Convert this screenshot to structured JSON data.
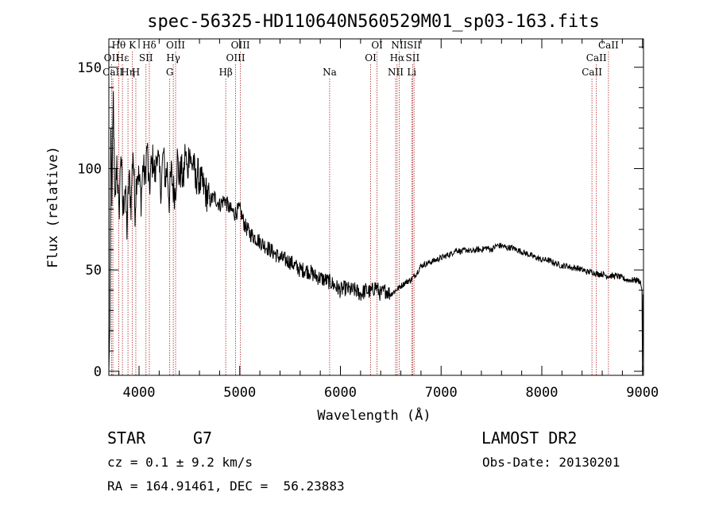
{
  "chart_data": {
    "type": "line",
    "title": "spec-56325-HD110640N560529M01_sp03-163.fits",
    "xlabel": "Wavelength (Å)",
    "ylabel": "Flux (relative)",
    "xlim": [
      3700,
      9010
    ],
    "ylim": [
      -2,
      164
    ],
    "xticks": [
      4000,
      5000,
      6000,
      7000,
      8000,
      9000
    ],
    "yticks": [
      0,
      50,
      100,
      150
    ],
    "grid": false,
    "line_color": "#000000",
    "marker_color": "#aa2222",
    "series": [
      {
        "x": [
          3700,
          3710,
          3720,
          3730,
          3745,
          3760,
          3780,
          3800,
          3820,
          3840,
          3860,
          3880,
          3900,
          3920,
          3940,
          3960,
          3980,
          4000,
          4020,
          4040,
          4060,
          4080,
          4100,
          4120,
          4140,
          4160,
          4180,
          4200,
          4220,
          4240,
          4260,
          4280,
          4300,
          4320,
          4340,
          4360,
          4380,
          4400,
          4420,
          4440,
          4460,
          4480,
          4500,
          4520,
          4540,
          4560,
          4580,
          4600,
          4650,
          4700,
          4750,
          4800,
          4850,
          4900,
          4950,
          5000,
          5050,
          5100,
          5150,
          5200,
          5250,
          5300,
          5350,
          5400,
          5450,
          5500,
          5550,
          5600,
          5650,
          5700,
          5750,
          5800,
          5850,
          5900,
          5950,
          6000,
          6050,
          6100,
          6150,
          6200,
          6250,
          6300,
          6350,
          6400,
          6450,
          6500,
          6550,
          6600,
          6650,
          6700,
          6750,
          6800,
          6850,
          6900,
          6950,
          7000,
          7050,
          7100,
          7150,
          7200,
          7250,
          7300,
          7350,
          7400,
          7450,
          7500,
          7550,
          7600,
          7650,
          7700,
          7750,
          7800,
          7850,
          7900,
          7950,
          8000,
          8050,
          8100,
          8150,
          8200,
          8250,
          8300,
          8350,
          8400,
          8450,
          8500,
          8550,
          8600,
          8650,
          8700,
          8750,
          8800,
          8850,
          8900,
          8950,
          8980,
          8995,
          9000,
          9005
        ],
        "values": [
          0,
          22,
          120,
          85,
          135,
          80,
          105,
          75,
          110,
          78,
          92,
          70,
          96,
          82,
          110,
          80,
          100,
          95,
          85,
          102,
          94,
          112,
          88,
          100,
          105,
          95,
          110,
          98,
          90,
          108,
          95,
          100,
          85,
          98,
          90,
          88,
          105,
          95,
          100,
          92,
          110,
          96,
          112,
          100,
          105,
          92,
          98,
          94,
          90,
          84,
          86,
          82,
          85,
          80,
          78,
          80,
          72,
          68,
          66,
          64,
          62,
          60,
          58,
          56,
          55,
          54,
          52,
          50,
          50,
          49,
          47,
          46,
          45,
          44,
          42,
          40,
          41,
          40,
          40,
          38,
          40,
          39,
          42,
          38,
          40,
          38,
          40,
          42,
          44,
          45,
          48,
          52,
          53,
          54,
          55,
          56,
          57,
          58,
          60,
          59,
          60,
          59,
          60,
          60,
          61,
          60,
          62,
          62,
          61,
          61,
          60,
          59,
          58,
          57,
          56,
          55,
          55,
          54,
          53,
          52,
          52,
          51,
          51,
          50,
          49,
          49,
          48,
          48,
          47,
          47,
          47,
          46,
          45,
          45,
          45,
          44,
          40,
          0,
          38
        ]
      }
    ],
    "lines": [
      {
        "label": "Hθ",
        "x": 3798,
        "tier": 1
      },
      {
        "label": "OII",
        "x": 3727,
        "tier": 2
      },
      {
        "label": "Hε",
        "x": 3835,
        "tier": 2
      },
      {
        "label": "CaII",
        "x": 3740,
        "tier": 3
      },
      {
        "label": "Hη",
        "x": 3890,
        "tier": 3
      },
      {
        "label": "K",
        "x": 3934,
        "tier": 1
      },
      {
        "label": "H",
        "x": 3968,
        "tier": 3
      },
      {
        "label": "SII",
        "x": 4069,
        "tier": 2
      },
      {
        "label": "Hδ",
        "x": 4102,
        "tier": 1
      },
      {
        "label": "OIII",
        "x": 4363,
        "tier": 1
      },
      {
        "label": "Hγ",
        "x": 4340,
        "tier": 2
      },
      {
        "label": "G",
        "x": 4305,
        "tier": 3
      },
      {
        "label": "Hβ",
        "x": 4861,
        "tier": 3
      },
      {
        "label": "OIII",
        "x": 5007,
        "tier": 1
      },
      {
        "label": "OIII",
        "x": 4959,
        "tier": 2
      },
      {
        "label": "Na",
        "x": 5893,
        "tier": 3
      },
      {
        "label": "OI",
        "x": 6364,
        "tier": 1
      },
      {
        "label": "OI",
        "x": 6300,
        "tier": 2
      },
      {
        "label": "NII",
        "x": 6583,
        "tier": 1
      },
      {
        "label": "Hα",
        "x": 6563,
        "tier": 2
      },
      {
        "label": "NII",
        "x": 6548,
        "tier": 3
      },
      {
        "label": "SII",
        "x": 6731,
        "tier": 1
      },
      {
        "label": "SII",
        "x": 6717,
        "tier": 2
      },
      {
        "label": "Li",
        "x": 6708,
        "tier": 3
      },
      {
        "label": "CaII",
        "x": 8662,
        "tier": 1
      },
      {
        "label": "CaII",
        "x": 8542,
        "tier": 2
      },
      {
        "label": "CaII",
        "x": 8498,
        "tier": 3
      }
    ]
  },
  "info": {
    "class_label": "STAR",
    "subclass": "G7",
    "survey": "LAMOST DR2",
    "cz_line": "cz = 0.1 ± 9.2 km/s",
    "obs_date_line": "Obs-Date: 20130201",
    "coords_line": "RA = 164.91461, DEC =  56.23883"
  }
}
